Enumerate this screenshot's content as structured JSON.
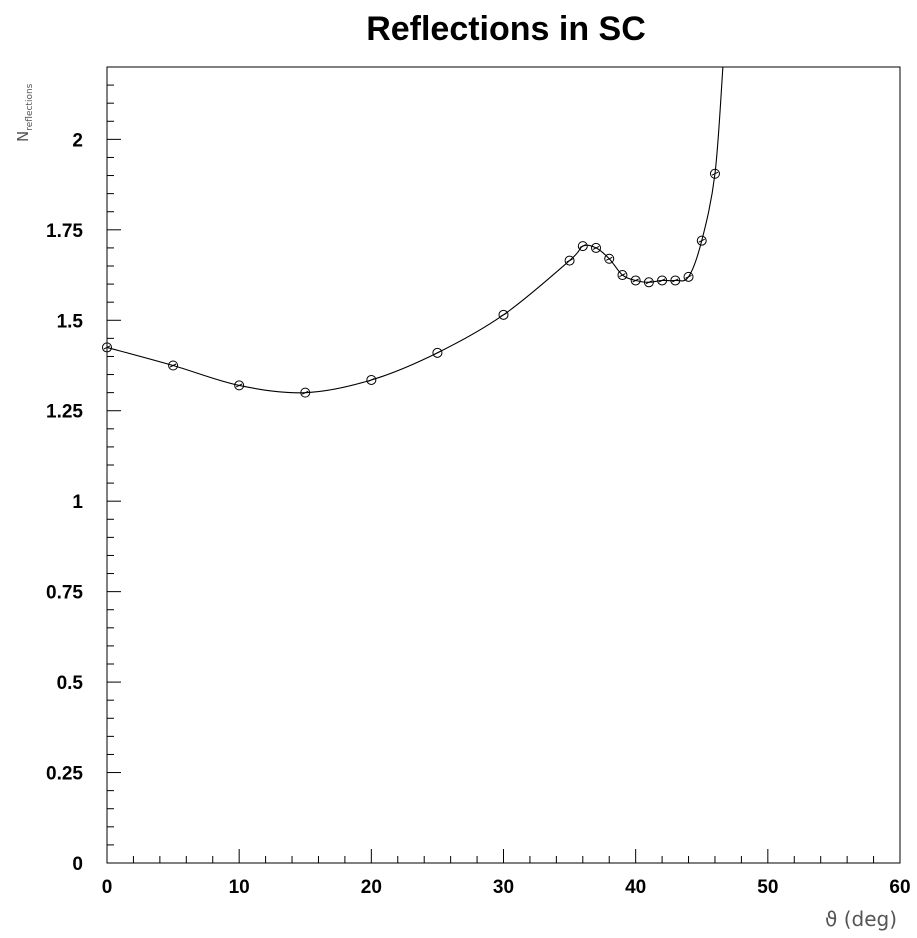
{
  "chart_data": {
    "type": "line",
    "title": "Reflections in SC",
    "xlabel": "ϑ (deg)",
    "ylabel_main": "N",
    "ylabel_sub": "reflections",
    "xlim": [
      0,
      60
    ],
    "ylim": [
      0,
      2.2
    ],
    "grid": false,
    "x_ticks": [
      "0",
      "10",
      "20",
      "30",
      "40",
      "50",
      "60"
    ],
    "y_ticks": [
      "0",
      "0.25",
      "0.5",
      "0.75",
      "1",
      "1.25",
      "1.5",
      "1.75",
      "2"
    ],
    "series": [
      {
        "marker": "circle",
        "points": [
          {
            "x": 0,
            "y": 1.425
          },
          {
            "x": 5,
            "y": 1.375
          },
          {
            "x": 10,
            "y": 1.32
          },
          {
            "x": 15,
            "y": 1.3
          },
          {
            "x": 20,
            "y": 1.335
          },
          {
            "x": 25,
            "y": 1.41
          },
          {
            "x": 30,
            "y": 1.515
          },
          {
            "x": 35,
            "y": 1.665
          },
          {
            "x": 36,
            "y": 1.705
          },
          {
            "x": 37,
            "y": 1.7
          },
          {
            "x": 38,
            "y": 1.67
          },
          {
            "x": 39,
            "y": 1.625
          },
          {
            "x": 40,
            "y": 1.61
          },
          {
            "x": 41,
            "y": 1.605
          },
          {
            "x": 42,
            "y": 1.61
          },
          {
            "x": 43,
            "y": 1.61
          },
          {
            "x": 44,
            "y": 1.62
          },
          {
            "x": 45,
            "y": 1.72
          },
          {
            "x": 46,
            "y": 1.905
          },
          {
            "x": 46.6,
            "y": 2.2
          }
        ]
      }
    ]
  }
}
